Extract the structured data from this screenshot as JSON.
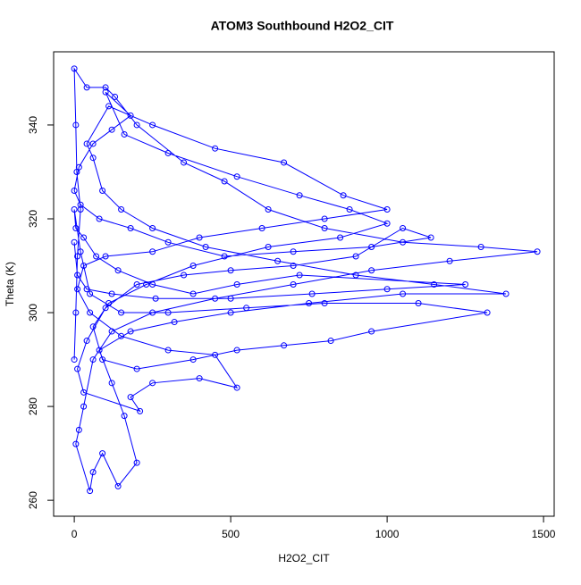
{
  "chart_data": {
    "type": "line",
    "title": "ATOM3 Southbound H2O2_CIT",
    "x_label": "H2O2_CIT",
    "y_label": "Theta (K)",
    "xlim": [
      -66,
      1534
    ],
    "ylim": [
      256.6,
      355.6
    ],
    "xticks": [
      0,
      500,
      1000,
      1500
    ],
    "yticks": [
      260,
      280,
      300,
      320,
      340
    ],
    "series": [
      {
        "color": "#0000ff",
        "x": [
          0,
          5,
          10,
          20,
          8,
          5,
          0,
          40,
          100,
          130,
          200,
          350,
          480,
          620,
          800,
          1050,
          1300,
          1480,
          1200,
          950,
          700,
          450,
          250,
          120,
          60,
          30,
          15,
          5,
          50,
          60,
          90,
          140,
          200,
          160,
          120,
          80,
          180,
          320,
          500,
          750,
          1050,
          1380,
          1150,
          900,
          650,
          420,
          250,
          150,
          90,
          60,
          40,
          110,
          250,
          450,
          670,
          860,
          1000,
          800,
          600,
          400,
          250,
          100,
          30,
          10,
          50,
          150,
          300,
          450,
          520,
          400,
          250,
          180,
          210,
          30,
          10,
          40,
          100,
          200,
          350,
          500,
          700,
          900,
          1050,
          1140,
          950,
          700,
          480,
          300,
          180,
          80,
          20,
          0,
          15,
          60,
          120,
          180,
          100,
          160,
          300,
          520,
          720,
          880,
          1000,
          850,
          620,
          380,
          230,
          110,
          60,
          90,
          200,
          380,
          520,
          670,
          820,
          950,
          1320,
          1100,
          800,
          550,
          300,
          150,
          50,
          20,
          0,
          5,
          30,
          70,
          140,
          250,
          380,
          520,
          720,
          1250,
          1000,
          760,
          500,
          260,
          120,
          40,
          10,
          0
        ],
        "values": [
          290,
          300,
          312,
          322,
          330,
          340,
          352,
          348,
          348,
          346,
          340,
          332,
          328,
          322,
          318,
          315,
          314,
          313,
          311,
          309,
          306,
          303,
          300,
          296,
          290,
          280,
          275,
          272,
          262,
          266,
          270,
          263,
          268,
          278,
          285,
          292,
          296,
          298,
          300,
          302,
          304,
          304,
          306,
          308,
          311,
          314,
          318,
          322,
          326,
          333,
          336,
          344,
          340,
          335,
          332,
          325,
          322,
          320,
          318,
          316,
          313,
          312,
          310,
          305,
          300,
          295,
          292,
          291,
          284,
          286,
          285,
          282,
          279,
          283,
          288,
          294,
          301,
          306,
          308,
          309,
          310,
          312,
          318,
          316,
          314,
          313,
          312,
          315,
          318,
          320,
          323,
          326,
          331,
          336,
          339,
          342,
          347,
          338,
          334,
          329,
          325,
          322,
          319,
          316,
          314,
          310,
          306,
          302,
          297,
          290,
          288,
          290,
          292,
          293,
          294,
          296,
          300,
          302,
          302,
          301,
          300,
          300,
          304,
          313,
          322,
          318,
          316,
          312,
          309,
          306,
          304,
          306,
          308,
          306,
          305,
          304,
          303,
          303,
          304,
          305,
          308,
          315
        ]
      }
    ]
  }
}
